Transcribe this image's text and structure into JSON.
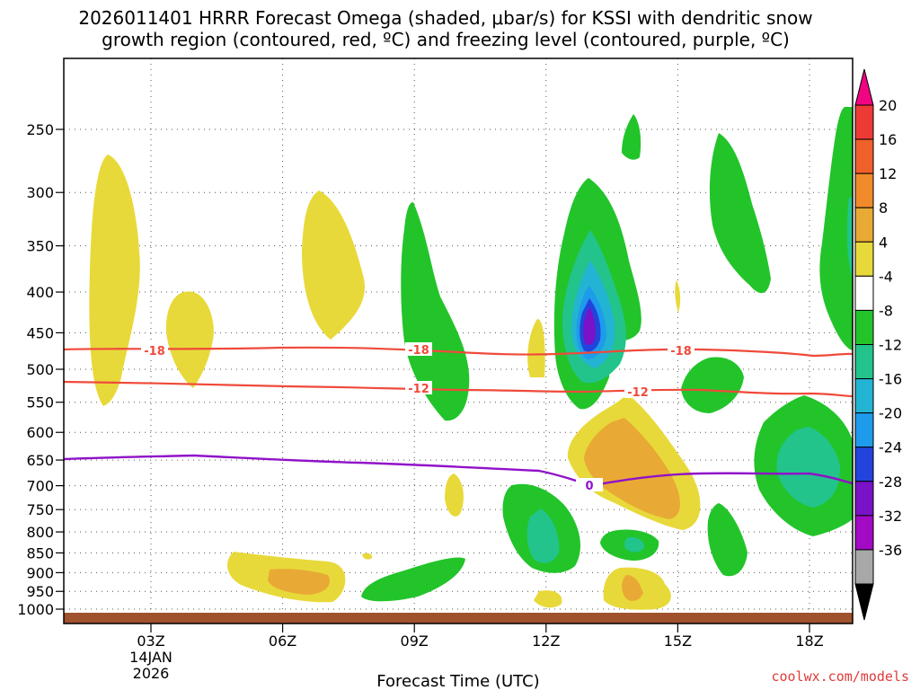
{
  "chart_data": {
    "type": "heatmap",
    "title_line1": "2026011401 HRRR Forecast Omega (shaded, μbar/s) for KSSI with dendritic snow",
    "title_line2": "growth region (contoured, red, ºC) and freezing level (contoured, purple, ºC)",
    "xlabel": "Forecast Time (UTC)",
    "ylabel": "",
    "credit": "coolwx.com/models",
    "x_ticks": [
      "03Z",
      "06Z",
      "09Z",
      "12Z",
      "15Z",
      "18Z"
    ],
    "x_date_label": "14JAN",
    "x_year_label": "2026",
    "y_ticks": [
      "250",
      "300",
      "350",
      "400",
      "450",
      "500",
      "550",
      "600",
      "650",
      "700",
      "750",
      "800",
      "850",
      "900",
      "950",
      "1000"
    ],
    "colorbar_labels": [
      "20",
      "16",
      "12",
      "8",
      "4",
      "-4",
      "-8",
      "-12",
      "-16",
      "-20",
      "-24",
      "-28",
      "-32",
      "-36"
    ],
    "colorbar_colors": [
      "#f00482",
      "#ee3a36",
      "#f0602a",
      "#f08a2a",
      "#e8aa34",
      "#e8d93a",
      "#ffffff",
      "#22c42a",
      "#22c48c",
      "#22b4d2",
      "#1e9bea",
      "#2244dc",
      "#7a12c8",
      "#a20ac4",
      "#a8a8a8",
      "#000000"
    ],
    "contour_labels": {
      "dgz_upper": [
        "-18",
        "-18",
        "-18"
      ],
      "dgz_lower": [
        "-12",
        "-12"
      ],
      "freezing": [
        "0"
      ]
    },
    "colors": {
      "dgz": "#f04a3a",
      "freezing": "#9012c8",
      "ground": "#a0522d",
      "up_weak": "#e8d93a",
      "up_mod": "#e8aa34",
      "down_weak": "#22c42a",
      "down_mod": "#22c48c",
      "down_strong": "#22b4d2",
      "down_stronger": "#1e9bea",
      "down_max": "#2244dc",
      "down_extreme": "#7a12c8"
    }
  }
}
